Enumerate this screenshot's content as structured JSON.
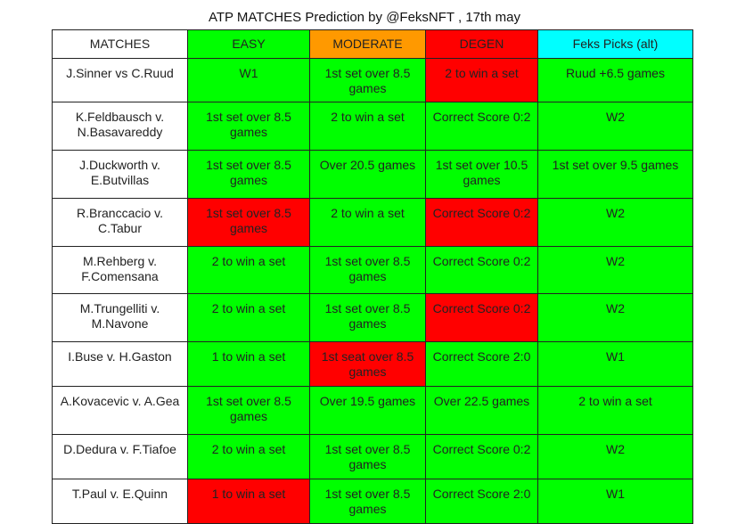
{
  "title": "ATP MATCHES Prediction by @FeksNFT , 17th may",
  "table": {
    "header": [
      {
        "text": "MATCHES",
        "color": "#ffffff"
      },
      {
        "text": "EASY",
        "color": "#00ff00"
      },
      {
        "text": "MODERATE",
        "color": "#ff9900"
      },
      {
        "text": "DEGEN",
        "color": "#ff0000"
      },
      {
        "text": "Feks Picks (alt)",
        "color": "#00ffff"
      }
    ],
    "rows": [
      [
        {
          "text": "J.Sinner vs C.Ruud",
          "color": "#ffffff"
        },
        {
          "text": "W1",
          "color": "#00ff00"
        },
        {
          "text": "1st set over 8.5 games",
          "color": "#00ff00"
        },
        {
          "text": "2 to win a set",
          "color": "#ff0000"
        },
        {
          "text": "Ruud +6.5 games",
          "color": "#00ff00"
        }
      ],
      [
        {
          "text": "K.Feldbausch v. N.Basavareddy",
          "color": "#ffffff"
        },
        {
          "text": "1st set over 8.5 games",
          "color": "#00ff00"
        },
        {
          "text": "2 to win a set",
          "color": "#00ff00"
        },
        {
          "text": "Correct Score 0:2",
          "color": "#00ff00"
        },
        {
          "text": "W2",
          "color": "#00ff00"
        }
      ],
      [
        {
          "text": "J.Duckworth v. E.Butvillas",
          "color": "#ffffff"
        },
        {
          "text": "1st set over 8.5 games",
          "color": "#00ff00"
        },
        {
          "text": "Over 20.5 games",
          "color": "#00ff00"
        },
        {
          "text": "1st set over 10.5 games",
          "color": "#00ff00"
        },
        {
          "text": "1st set over 9.5 games",
          "color": "#00ff00"
        }
      ],
      [
        {
          "text": "R.Branccacio v. C.Tabur",
          "color": "#ffffff"
        },
        {
          "text": "1st set over 8.5 games",
          "color": "#ff0000"
        },
        {
          "text": "2 to win a set",
          "color": "#00ff00"
        },
        {
          "text": "Correct Score 0:2",
          "color": "#ff0000"
        },
        {
          "text": "W2",
          "color": "#00ff00"
        }
      ],
      [
        {
          "text": "M.Rehberg v. F.Comensana",
          "color": "#ffffff"
        },
        {
          "text": "2 to win a set",
          "color": "#00ff00"
        },
        {
          "text": "1st set over 8.5 games",
          "color": "#00ff00"
        },
        {
          "text": "Correct Score 0:2",
          "color": "#00ff00"
        },
        {
          "text": "W2",
          "color": "#00ff00"
        }
      ],
      [
        {
          "text": "M.Trungelliti v. M.Navone",
          "color": "#ffffff"
        },
        {
          "text": "2 to win a set",
          "color": "#00ff00"
        },
        {
          "text": "1st set over 8.5 games",
          "color": "#00ff00"
        },
        {
          "text": "Correct Score 0:2",
          "color": "#ff0000"
        },
        {
          "text": "W2",
          "color": "#00ff00"
        }
      ],
      [
        {
          "text": "I.Buse v. H.Gaston",
          "color": "#ffffff"
        },
        {
          "text": "1 to win a set",
          "color": "#00ff00"
        },
        {
          "text": "1st seat over 8.5 games",
          "color": "#ff0000"
        },
        {
          "text": "Correct Score 2:0",
          "color": "#00ff00"
        },
        {
          "text": "W1",
          "color": "#00ff00"
        }
      ],
      [
        {
          "text": "A.Kovacevic v. A.Gea",
          "color": "#ffffff"
        },
        {
          "text": "1st set over 8.5 games",
          "color": "#00ff00"
        },
        {
          "text": "Over 19.5 games",
          "color": "#00ff00"
        },
        {
          "text": "Over 22.5 games",
          "color": "#00ff00"
        },
        {
          "text": "2 to win a set",
          "color": "#00ff00"
        }
      ],
      [
        {
          "text": "D.Dedura v. F.Tiafoe",
          "color": "#ffffff"
        },
        {
          "text": "2 to win a set",
          "color": "#00ff00"
        },
        {
          "text": "1st set over 8.5 games",
          "color": "#00ff00"
        },
        {
          "text": "Correct Score 0:2",
          "color": "#00ff00"
        },
        {
          "text": "W2",
          "color": "#00ff00"
        }
      ],
      [
        {
          "text": "T.Paul v. E.Quinn",
          "color": "#ffffff"
        },
        {
          "text": "1 to win a set",
          "color": "#ff0000"
        },
        {
          "text": "1st set over 8.5 games",
          "color": "#00ff00"
        },
        {
          "text": "Correct Score 2:0",
          "color": "#00ff00"
        },
        {
          "text": "W1",
          "color": "#00ff00"
        }
      ]
    ]
  }
}
